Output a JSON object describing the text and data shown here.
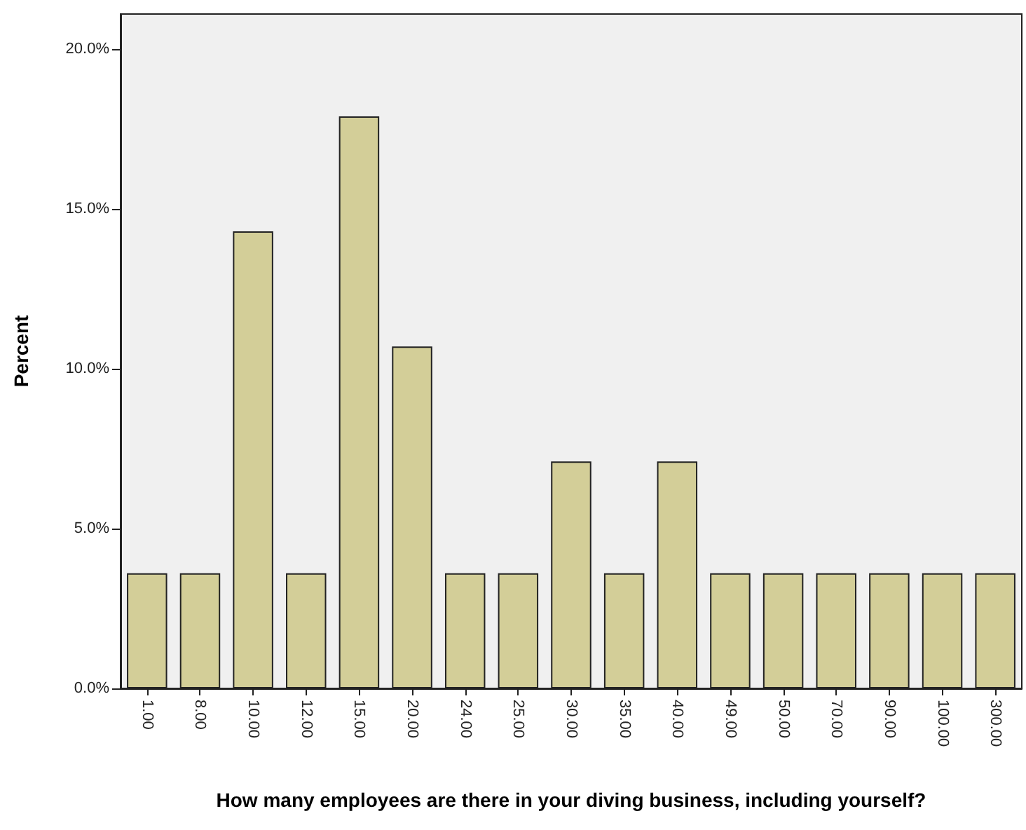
{
  "chart_data": {
    "type": "bar",
    "xlabel": "How many employees are there in your diving business, including yourself?",
    "ylabel": "Percent",
    "categories": [
      "1.00",
      "8.00",
      "10.00",
      "12.00",
      "15.00",
      "20.00",
      "24.00",
      "25.00",
      "30.00",
      "35.00",
      "40.00",
      "49.00",
      "50.00",
      "70.00",
      "90.00",
      "100.00",
      "300.00"
    ],
    "values": [
      3.6,
      3.6,
      14.3,
      3.6,
      17.9,
      10.7,
      3.6,
      3.6,
      7.1,
      3.6,
      7.1,
      3.6,
      3.6,
      3.6,
      3.6,
      3.6,
      3.6
    ],
    "color": "#d3ce98",
    "ylim": [
      0,
      21.1
    ],
    "yticks": [
      {
        "value": 0,
        "label": "0.0%"
      },
      {
        "value": 5,
        "label": "5.0%"
      },
      {
        "value": 10,
        "label": "10.0%"
      },
      {
        "value": 15,
        "label": "15.0%"
      },
      {
        "value": 20,
        "label": "20.0%"
      }
    ],
    "grid": false
  }
}
